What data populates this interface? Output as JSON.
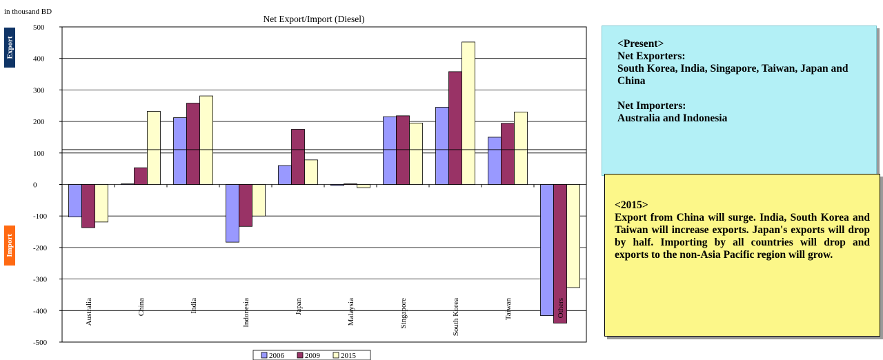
{
  "chart_data": {
    "type": "bar",
    "title": "Net Export/Import (Diesel)",
    "unit_label": "in thousand BD",
    "categories": [
      "Australia",
      "China",
      "India",
      "Indonesia",
      "Japan",
      "Malaysia",
      "Singapore",
      "South Korea",
      "Taiwan",
      "Others"
    ],
    "series": [
      {
        "name": "2006",
        "color": "#9999ff",
        "values": [
          -103,
          2,
          212,
          -183,
          60,
          -3,
          215,
          245,
          150,
          -416
        ]
      },
      {
        "name": "2009",
        "color": "#993366",
        "values": [
          -137,
          53,
          258,
          -133,
          175,
          2,
          218,
          358,
          194,
          -440
        ]
      },
      {
        "name": "2015",
        "color": "#ffffcc",
        "values": [
          -119,
          232,
          281,
          -100,
          78,
          -10,
          195,
          452,
          230,
          -327
        ]
      }
    ],
    "ylim": [
      -500,
      500
    ],
    "yticks": [
      500,
      400,
      300,
      200,
      100,
      0,
      -100,
      -200,
      -300,
      -400,
      -500
    ],
    "ytick_labels": [
      "500",
      "400",
      "300",
      "200",
      "100",
      "0",
      "-100",
      "-200",
      "-300",
      "-400",
      "-500"
    ],
    "grid": true,
    "legend_position": "bottom-center",
    "export_label": "Export",
    "import_label": "Import"
  },
  "notes": {
    "present": {
      "heading": "<Present>",
      "exporters_heading": "Net Exporters:",
      "exporters": "South Korea, India, Singapore, Taiwan, Japan and China",
      "importers_heading": "Net Importers:",
      "importers": "Australia and Indonesia"
    },
    "forecast": {
      "heading": "<2015>",
      "text": "Export from China will surge. India, South Korea and Taiwan will increase exports. Japan's exports will drop by half. Importing by all countries will drop and exports to the non-Asia Pacific region will grow."
    }
  }
}
